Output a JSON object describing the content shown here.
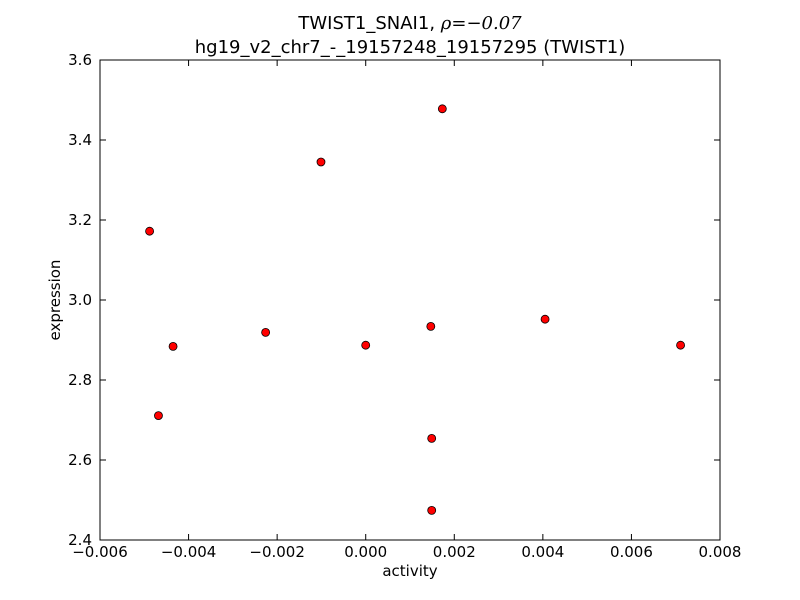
{
  "chart_data": {
    "type": "scatter",
    "title_line1": "TWIST1_SNAI1, ",
    "title_rho_symbol": "ρ",
    "title_rho_value": "=−0.07",
    "title_line2": "hg19_v2_chr7_-_19157248_19157295 (TWIST1)",
    "xlabel": "activity",
    "ylabel": "expression",
    "xlim": [
      -0.006,
      0.008
    ],
    "ylim": [
      2.4,
      3.6
    ],
    "xticks": [
      -0.006,
      -0.004,
      -0.002,
      0.0,
      0.002,
      0.004,
      0.006,
      0.008
    ],
    "xtick_labels": [
      "−0.006",
      "−0.004",
      "−0.002",
      "0.000",
      "0.002",
      "0.004",
      "0.006",
      "0.008"
    ],
    "yticks": [
      2.4,
      2.6,
      2.8,
      3.0,
      3.2,
      3.4,
      3.6
    ],
    "ytick_labels": [
      "2.4",
      "2.6",
      "2.8",
      "3.0",
      "3.2",
      "3.4",
      "3.6"
    ],
    "grid": false,
    "marker_color": "#ff0000",
    "marker_edge_color": "#000000",
    "points": [
      {
        "x": -0.00488,
        "y": 3.172
      },
      {
        "x": -0.00468,
        "y": 2.711
      },
      {
        "x": -0.00435,
        "y": 2.884
      },
      {
        "x": -0.00226,
        "y": 2.919
      },
      {
        "x": -0.00101,
        "y": 3.345
      },
      {
        "x": 0.0,
        "y": 2.887
      },
      {
        "x": 0.00147,
        "y": 2.934
      },
      {
        "x": 0.00149,
        "y": 2.654
      },
      {
        "x": 0.00149,
        "y": 2.474
      },
      {
        "x": 0.00173,
        "y": 3.478
      },
      {
        "x": 0.00405,
        "y": 2.952
      },
      {
        "x": 0.00711,
        "y": 2.887
      }
    ]
  }
}
